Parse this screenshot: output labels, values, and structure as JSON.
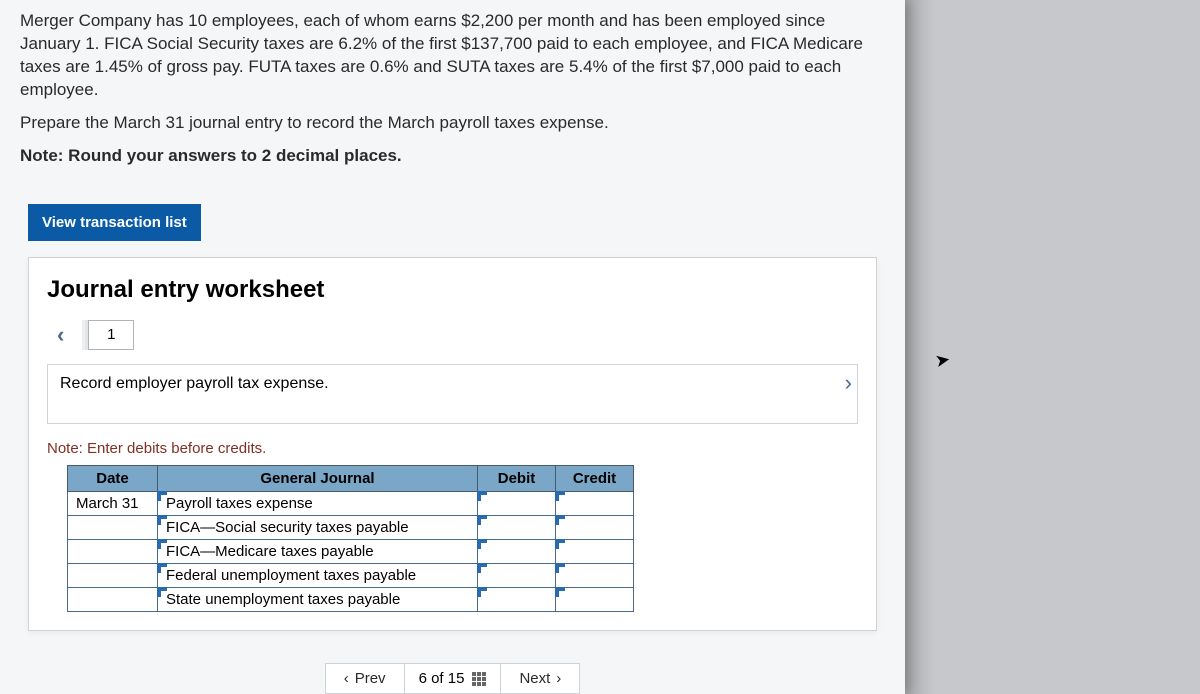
{
  "problem": {
    "p1": "Merger Company has 10 employees, each of whom earns $2,200 per month and has been employed since January 1. FICA Social Security taxes are 6.2% of the first $137,700 paid to each employee, and FICA Medicare taxes are 1.45% of gross pay. FUTA taxes are 0.6% and SUTA taxes are 5.4% of the first $7,000 paid to each employee.",
    "p2": "Prepare the March 31 journal entry to record the March payroll taxes expense.",
    "note": "Note: Round your answers to 2 decimal places."
  },
  "buttons": {
    "view_transaction_list": "View transaction list"
  },
  "worksheet": {
    "title": "Journal entry worksheet",
    "pager_current": "1",
    "prompt": "Record employer payroll tax expense.",
    "note": "Note: Enter debits before credits.",
    "headers": {
      "date": "Date",
      "gj": "General Journal",
      "debit": "Debit",
      "credit": "Credit"
    },
    "rows": [
      {
        "date": "March 31",
        "gj": "Payroll taxes expense",
        "debit": "",
        "credit": ""
      },
      {
        "date": "",
        "gj": "FICA—Social security taxes payable",
        "debit": "",
        "credit": ""
      },
      {
        "date": "",
        "gj": "FICA—Medicare taxes payable",
        "debit": "",
        "credit": ""
      },
      {
        "date": "",
        "gj": "Federal unemployment taxes payable",
        "debit": "",
        "credit": ""
      },
      {
        "date": "",
        "gj": "State unemployment taxes payable",
        "debit": "",
        "credit": ""
      }
    ]
  },
  "footer": {
    "prev": "Prev",
    "position": "6 of 15",
    "next": "Next"
  }
}
